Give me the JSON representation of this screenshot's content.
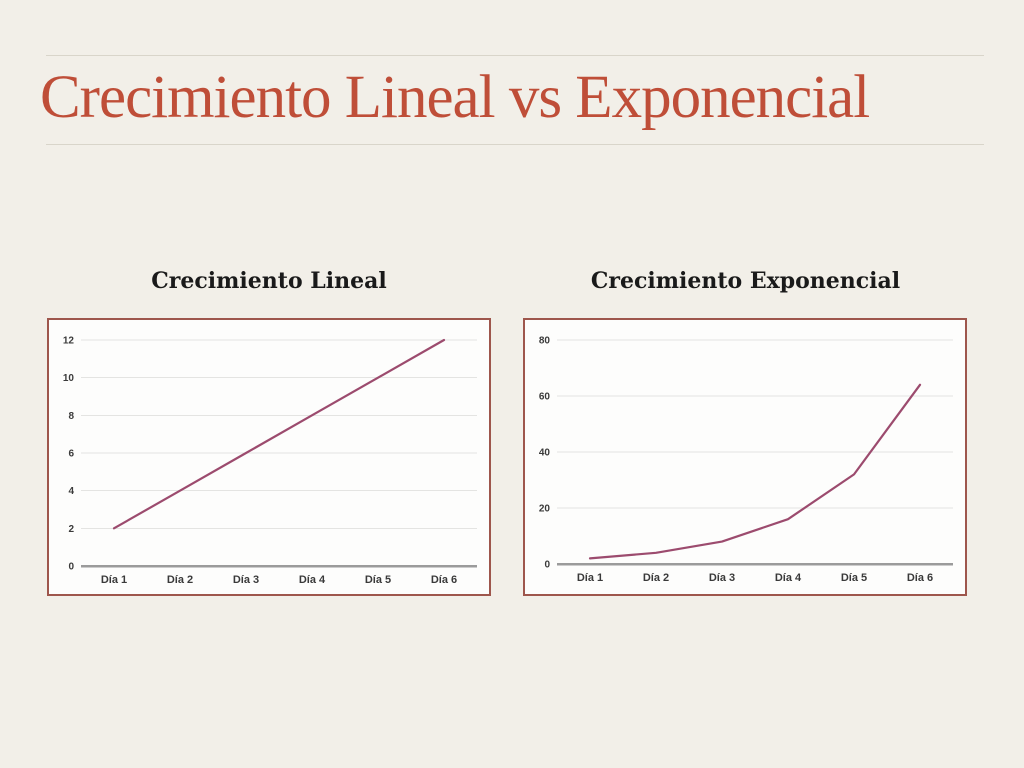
{
  "slide": {
    "title": "Crecimiento Lineal vs Exponencial",
    "colors": {
      "background": "#f2efe8",
      "title": "#bf4e38",
      "rule": "#d9d5ca",
      "frame_border": "#9e564c",
      "chart_background": "#fdfdfc",
      "grid": "#e4e4e2",
      "axis": "#9b9b9b",
      "tick_text": "#3a3a3a",
      "line": "#9c4b6e",
      "chart_title_text": "#1a1a1a"
    }
  },
  "chart_data": [
    {
      "type": "line",
      "title": "Crecimiento Lineal",
      "categories": [
        "Día 1",
        "Día 2",
        "Día 3",
        "Día 4",
        "Día 5",
        "Día 6"
      ],
      "values": [
        2,
        4,
        6,
        8,
        10,
        12
      ],
      "yticks": [
        0,
        2,
        4,
        6,
        8,
        10,
        12
      ],
      "ylim": [
        0,
        12
      ],
      "xlabel": "",
      "ylabel": "",
      "grid": true,
      "legend": "none"
    },
    {
      "type": "line",
      "title": "Crecimiento Exponencial",
      "categories": [
        "Día 1",
        "Día 2",
        "Día 3",
        "Día 4",
        "Día 5",
        "Día 6"
      ],
      "values": [
        2,
        4,
        8,
        16,
        32,
        64
      ],
      "yticks": [
        0,
        20,
        40,
        60,
        80
      ],
      "ylim": [
        0,
        80
      ],
      "xlabel": "",
      "ylabel": "",
      "grid": true,
      "legend": "none"
    }
  ]
}
